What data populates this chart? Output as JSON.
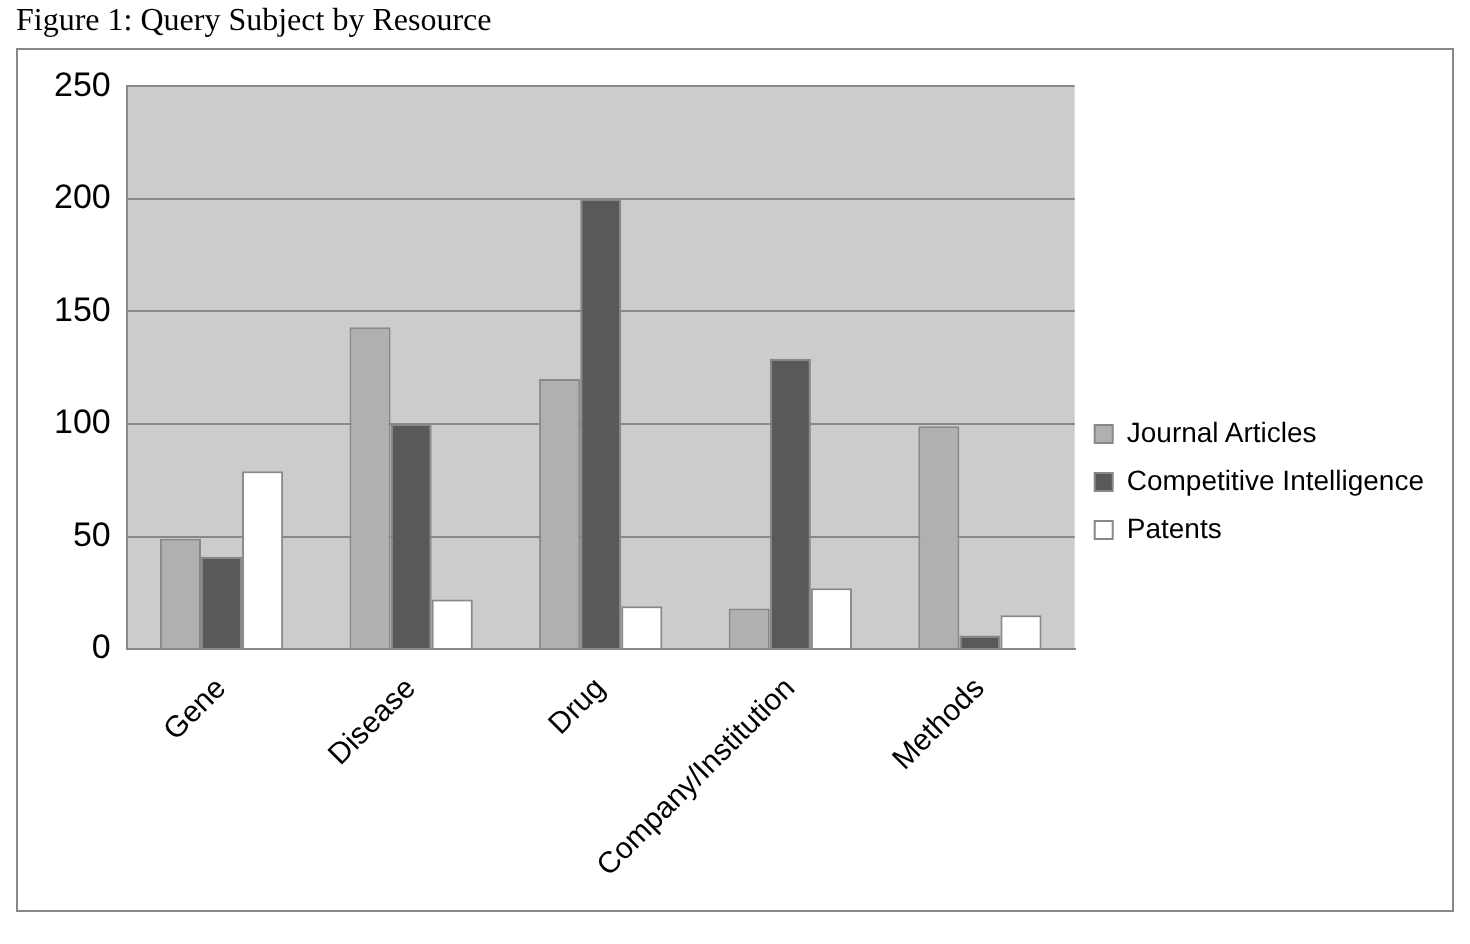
{
  "chart_data": {
    "type": "bar",
    "title": "Figure 1: Query Subject by Resource",
    "categories": [
      "Gene",
      "Disease",
      "Drug",
      "Company/Institution",
      "Methods"
    ],
    "series": [
      {
        "name": "Journal Articles",
        "color": "#b0b0b0",
        "values": [
          49,
          143,
          120,
          18,
          99
        ]
      },
      {
        "name": "Competitive Intelligence",
        "color": "#595959",
        "values": [
          41,
          100,
          200,
          129,
          6
        ]
      },
      {
        "name": "Patents",
        "color": "#ffffff",
        "values": [
          79,
          22,
          19,
          27,
          15
        ]
      }
    ],
    "ylim": [
      0,
      250
    ],
    "yticks": [
      0,
      50,
      100,
      150,
      200,
      250
    ],
    "grid": "y",
    "legend": "right"
  }
}
